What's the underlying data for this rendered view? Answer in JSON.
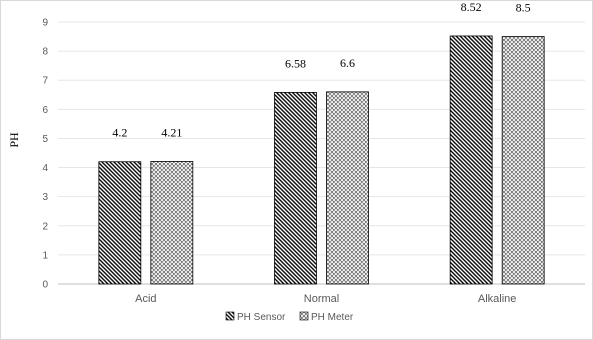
{
  "chart_data": {
    "type": "bar",
    "categories": [
      "Acid",
      "Normal",
      "Alkaline"
    ],
    "series": [
      {
        "name": "PH Sensor",
        "values": [
          4.2,
          6.58,
          8.52
        ],
        "labels": [
          "4.2",
          "6.58",
          "8.52"
        ],
        "pattern": "diagonal-hatch"
      },
      {
        "name": "PH Meter",
        "values": [
          4.21,
          6.6,
          8.5
        ],
        "labels": [
          "4.21",
          "6.6",
          "8.5"
        ],
        "pattern": "cross-hatch"
      }
    ],
    "yticks": [
      "0",
      "1",
      "2",
      "3",
      "4",
      "5",
      "6",
      "7",
      "8",
      "9"
    ],
    "ylabel": "PH",
    "ylim": [
      0,
      9
    ],
    "grid": true,
    "legend_position": "bottom"
  }
}
